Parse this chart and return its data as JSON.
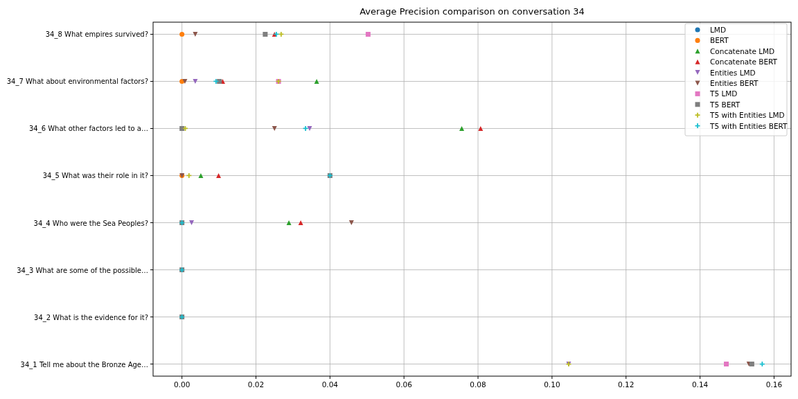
{
  "chart_data": {
    "type": "scatter",
    "title": "Average Precision comparison on conversation 34",
    "orientation": "horizontal",
    "categories": [
      "34_8 What empires survived?",
      "34_7 What about environmental factors?",
      "34_6 What other factors led to a…",
      "34_5 What was their role in it?",
      "34_4 Who were the Sea Peoples?",
      "34_3 What are some of the possible…",
      "34_2 What is the evidence for it?",
      "34_1 Tell me about the Bronze Age…"
    ],
    "xlim": [
      -0.0078,
      0.1646
    ],
    "xticks": [
      {
        "value": 0,
        "label": "0.00"
      },
      {
        "value": 0.02,
        "label": "0.02"
      },
      {
        "value": 0.04,
        "label": "0.04"
      },
      {
        "value": 0.06,
        "label": "0.06"
      },
      {
        "value": 0.08,
        "label": "0.08"
      },
      {
        "value": 0.1,
        "label": "0.10"
      },
      {
        "value": 0.12,
        "label": "0.12"
      },
      {
        "value": 0.14,
        "label": "0.14"
      },
      {
        "value": 0.16,
        "label": "0.16"
      }
    ],
    "grid": true,
    "legend": "top right",
    "series": [
      {
        "name": "LMD",
        "color": "#1f77b4",
        "marker": "circle",
        "values": [
          null,
          null,
          null,
          null,
          null,
          null,
          null,
          null
        ]
      },
      {
        "name": "BERT",
        "color": "#ff7f0e",
        "marker": "circle",
        "values": [
          0,
          0,
          null,
          0,
          null,
          null,
          null,
          null
        ]
      },
      {
        "name": "Concatenate LMD",
        "color": "#2ca02c",
        "marker": "triangle",
        "values": [
          null,
          0.0364,
          0.0756,
          0.0051,
          0.0289,
          null,
          null,
          null
        ]
      },
      {
        "name": "Concatenate BERT",
        "color": "#d62728",
        "marker": "triangle",
        "values": [
          0.025,
          0.011,
          0.0807,
          0.0099,
          0.0321,
          null,
          null,
          null
        ]
      },
      {
        "name": "Entities LMD",
        "color": "#9467bd",
        "marker": "triangle-down",
        "values": [
          null,
          0.0036,
          0.0345,
          null,
          0.0026,
          null,
          null,
          0.1045
        ]
      },
      {
        "name": "Entities BERT",
        "color": "#8c564b",
        "marker": "triangle-down",
        "values": [
          0.0036,
          0.0008,
          0.025,
          0,
          0.0458,
          null,
          null,
          0.1532
        ]
      },
      {
        "name": "T5 LMD",
        "color": "#e377c2",
        "marker": "square",
        "values": [
          0.0503,
          0.0261,
          null,
          null,
          null,
          null,
          null,
          0.1471
        ]
      },
      {
        "name": "T5 BERT",
        "color": "#7f7f7f",
        "marker": "square",
        "values": [
          0.0225,
          0.0101,
          0,
          0.04,
          0,
          0,
          0,
          0.154
        ]
      },
      {
        "name": "T5 with Entities LMD",
        "color": "#bcbd22",
        "marker": "cross",
        "values": [
          0.0268,
          0.0261,
          0.0009,
          0.0019,
          null,
          null,
          null,
          0.1045
        ]
      },
      {
        "name": "T5 with Entities BERT",
        "color": "#17becf",
        "marker": "cross",
        "values": [
          0.0255,
          0.0092,
          0.0334,
          0.04,
          0,
          0,
          0,
          0.1568
        ]
      }
    ]
  }
}
